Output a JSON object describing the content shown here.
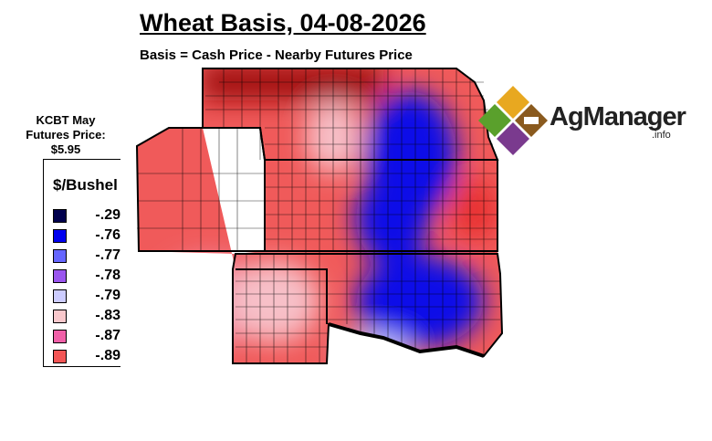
{
  "title": "Wheat Basis, 04-08-2026",
  "subtitle": "Basis = Cash Price - Nearby Futures Price",
  "futures_label": "KCBT May Futures Price: $5.95",
  "legend": {
    "title": "$/Bushel",
    "items": [
      {
        "value": "-.29",
        "color": "#00004d"
      },
      {
        "value": "-.76",
        "color": "#0000ee"
      },
      {
        "value": "-.77",
        "color": "#6666ff"
      },
      {
        "value": "-.78",
        "color": "#9a55ee"
      },
      {
        "value": "-.79",
        "color": "#ccccff"
      },
      {
        "value": "-.83",
        "color": "#f9c8cc"
      },
      {
        "value": "-.87",
        "color": "#f060a8"
      },
      {
        "value": "-.89",
        "color": "#f25555"
      }
    ]
  },
  "logo": {
    "name": "AgManager",
    "suffix": ".info"
  }
}
